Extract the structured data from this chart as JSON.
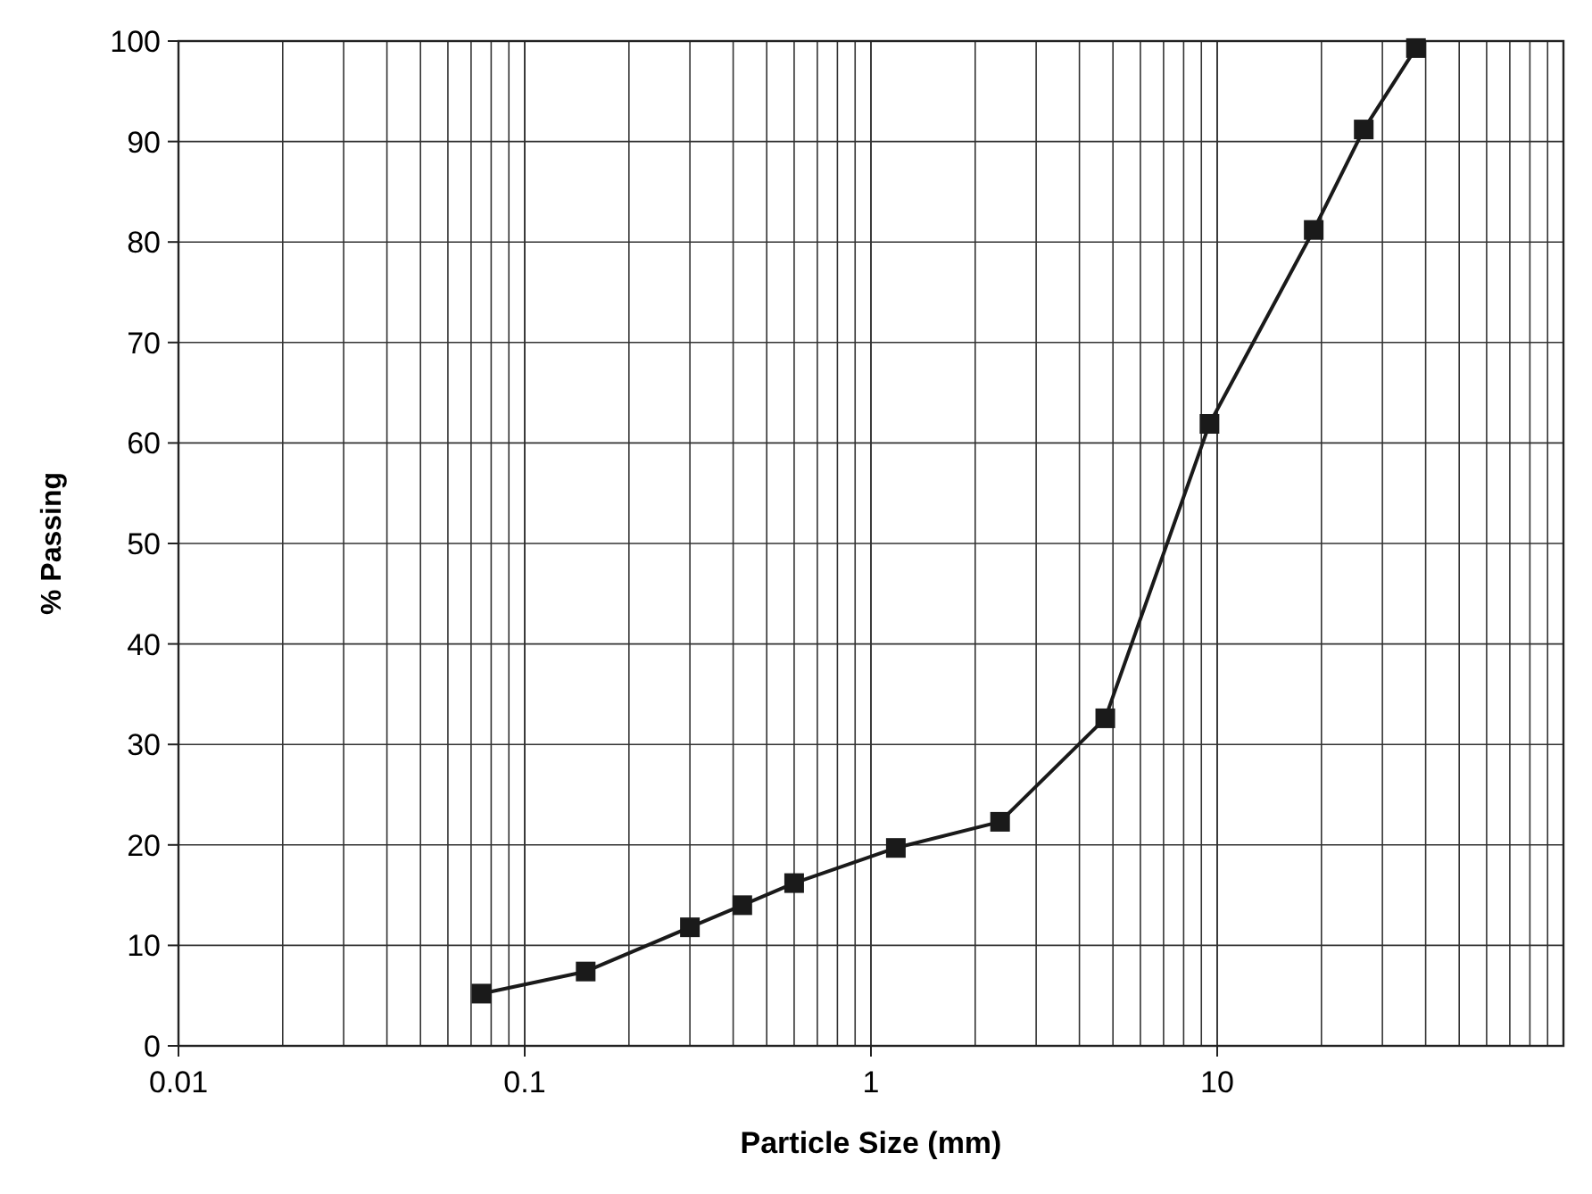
{
  "chart_data": {
    "type": "line",
    "xlabel": "Particle Size (mm)",
    "ylabel": "% Passing",
    "log": "x",
    "xlim": [
      0.01,
      100
    ],
    "xticks": [
      0.01,
      0.1,
      1,
      10
    ],
    "ylim": [
      0,
      100
    ],
    "yticks": [
      0,
      10,
      20,
      30,
      40,
      50,
      60,
      70,
      80,
      90,
      100
    ],
    "grid": true,
    "marker": "square",
    "line_style": "solid",
    "x": [
      0.075,
      0.15,
      0.3,
      0.425,
      0.6,
      1.18,
      2.36,
      4.75,
      9.5,
      19,
      26.5,
      37.5
    ],
    "series": [
      {
        "color": "#1a1a1a",
        "values": [
          5.2,
          7.4,
          11.8,
          14.0,
          16.2,
          19.7,
          22.3,
          32.6,
          61.9,
          81.2,
          91.2,
          99.3
        ]
      }
    ]
  }
}
